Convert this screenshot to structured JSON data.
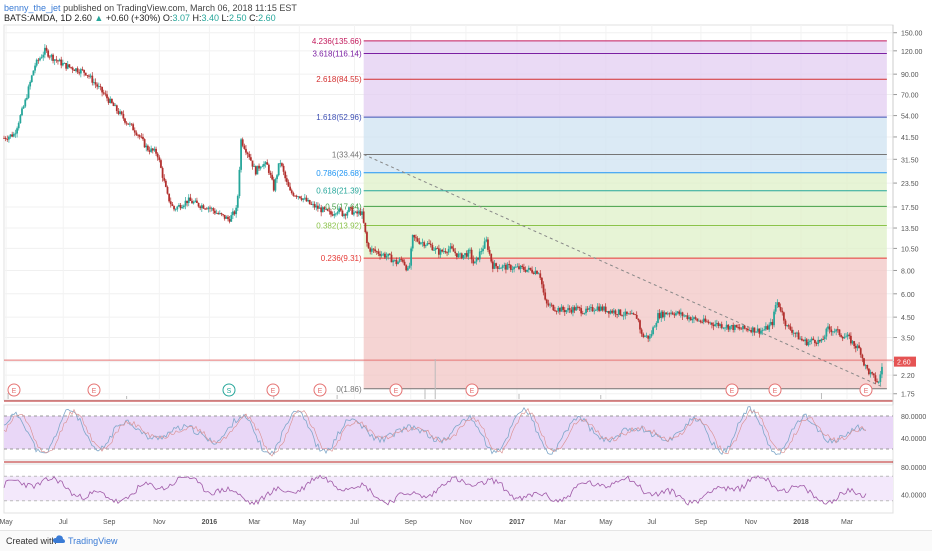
{
  "header": {
    "user": "benny_the_jet",
    "published": "published on TradingView.com, March 06, 2018 11:15 EST",
    "symbol": "BATS:AMDA, 1D",
    "price": "2.60",
    "change": "+0.60 (+30%)",
    "o_label": "O:",
    "o": "3.07",
    "h_label": "H:",
    "h": "3.40",
    "l_label": "L:",
    "l": "2.50",
    "c_label": "C:",
    "c": "2.60",
    "up_icon": "triangle-up"
  },
  "footer": {
    "created_with": "Created with",
    "brand": "TradingView",
    "logo_icon": "tradingview-cloud-logo"
  },
  "colors": {
    "up": "#26a69a",
    "down": "#b2302e",
    "fib_fill_red": "#f2c6c4",
    "fib_fill_green": "#dff0c8",
    "fib_fill_blue": "#cfe3f2",
    "fib_fill_purple": "#e3cdf2",
    "stoch_band": "#e9d7f7",
    "rsi_band": "#f3e8fb",
    "price_tag": "#e55353"
  },
  "chart_data": {
    "type": "candlestick",
    "symbol": "BATS:AMDA",
    "interval": "1D",
    "y_scale": "log",
    "y_ticks": [
      "150.00",
      "120.00",
      "90.00",
      "70.00",
      "54.00",
      "41.50",
      "31.50",
      "23.50",
      "17.50",
      "13.50",
      "10.50",
      "8.00",
      "6.00",
      "4.50",
      "3.50",
      "2.60",
      "2.20",
      "1.75"
    ],
    "x_ticks": [
      "May",
      "Jul",
      "Sep",
      "Nov",
      "2016",
      "Mar",
      "May",
      "Jul",
      "Sep",
      "Nov",
      "2017",
      "Mar",
      "May",
      "Jul",
      "Sep",
      "Nov",
      "2018",
      "Mar"
    ],
    "price_path": [
      [
        0,
        41
      ],
      [
        0.5,
        43
      ],
      [
        1,
        62
      ],
      [
        1.5,
        100
      ],
      [
        2,
        120
      ],
      [
        2.5,
        108
      ],
      [
        3,
        100
      ],
      [
        4,
        92
      ],
      [
        5,
        68
      ],
      [
        5.5,
        58
      ],
      [
        6,
        50
      ],
      [
        6.5,
        44
      ],
      [
        7,
        36
      ],
      [
        7.5,
        34
      ],
      [
        8,
        20
      ],
      [
        8.3,
        17
      ],
      [
        9,
        19
      ],
      [
        9.5,
        18
      ],
      [
        10,
        17.5
      ],
      [
        10.5,
        16
      ],
      [
        11,
        15
      ],
      [
        11.4,
        17
      ],
      [
        11.6,
        40
      ],
      [
        12,
        33
      ],
      [
        12.3,
        27
      ],
      [
        12.6,
        30
      ],
      [
        12.9,
        29
      ],
      [
        13.2,
        22
      ],
      [
        13.5,
        31
      ],
      [
        13.8,
        24
      ],
      [
        14,
        21
      ],
      [
        14.5,
        20
      ],
      [
        15,
        18
      ],
      [
        15.5,
        17
      ],
      [
        16,
        16
      ],
      [
        16.3,
        17
      ],
      [
        16.6,
        16
      ],
      [
        16.9,
        17
      ],
      [
        17.2,
        16
      ],
      [
        17.5,
        16.5
      ],
      [
        17.8,
        10.5
      ],
      [
        18.3,
        10
      ],
      [
        18.8,
        9.5
      ],
      [
        19.2,
        8.8
      ],
      [
        19.5,
        9.2
      ],
      [
        19.8,
        7.8
      ],
      [
        20,
        12
      ],
      [
        20.3,
        11.5
      ],
      [
        20.8,
        11
      ],
      [
        21.3,
        10
      ],
      [
        21.8,
        10.5
      ],
      [
        22.3,
        9.5
      ],
      [
        22.8,
        10
      ],
      [
        23,
        8.5
      ],
      [
        23.3,
        10
      ],
      [
        23.6,
        11.5
      ],
      [
        23.9,
        8.5
      ],
      [
        24.3,
        8.4
      ],
      [
        24.8,
        8.3
      ],
      [
        25.3,
        8.2
      ],
      [
        25.8,
        8
      ],
      [
        26.2,
        7.9
      ],
      [
        26.5,
        5.3
      ],
      [
        27,
        5
      ],
      [
        27.5,
        4.9
      ],
      [
        28,
        5
      ],
      [
        28.5,
        4.8
      ],
      [
        29,
        5.1
      ],
      [
        29.5,
        4.9
      ],
      [
        30,
        4.8
      ],
      [
        30.5,
        4.6
      ],
      [
        31,
        4.5
      ],
      [
        31.2,
        3.6
      ],
      [
        31.6,
        3.5
      ],
      [
        32,
        4.6
      ],
      [
        32.3,
        4.7
      ],
      [
        32.6,
        4.8
      ],
      [
        33,
        4.7
      ],
      [
        33.5,
        4.5
      ],
      [
        34,
        4.3
      ],
      [
        34.5,
        4.2
      ],
      [
        35,
        4.1
      ],
      [
        35.5,
        4.0
      ],
      [
        36,
        3.9
      ],
      [
        36.5,
        3.9
      ],
      [
        37,
        3.8
      ],
      [
        37.3,
        3.9
      ],
      [
        37.6,
        4.2
      ],
      [
        37.8,
        5.5
      ],
      [
        38,
        5.0
      ],
      [
        38.3,
        4.0
      ],
      [
        38.6,
        3.8
      ],
      [
        39,
        3.4
      ],
      [
        39.3,
        3.3
      ],
      [
        39.6,
        3.4
      ],
      [
        40,
        3.3
      ],
      [
        40.3,
        3.9
      ],
      [
        40.7,
        3.8
      ],
      [
        41,
        3.6
      ],
      [
        41.3,
        3.5
      ],
      [
        41.6,
        3.2
      ],
      [
        41.9,
        3.0
      ],
      [
        42.1,
        2.5
      ],
      [
        42.3,
        2.3
      ],
      [
        42.6,
        2.1
      ],
      [
        42.8,
        2.0
      ],
      [
        43,
        2.6
      ]
    ],
    "x_range": [
      0,
      43.5
    ],
    "y_range": [
      1.62,
      165
    ],
    "fibonacci": {
      "levels": [
        {
          "ratio": "4.236",
          "price": 135.66,
          "label": "4.236(135.66)",
          "color": "#c2185b"
        },
        {
          "ratio": "3.618",
          "price": 116.14,
          "label": "3.618(116.14)",
          "color": "#7b1fa2"
        },
        {
          "ratio": "2.618",
          "price": 84.55,
          "label": "2.618(84.55)",
          "color": "#d32f2f"
        },
        {
          "ratio": "1.618",
          "price": 52.96,
          "label": "1.618(52.96)",
          "color": "#3f51b5"
        },
        {
          "ratio": "1",
          "price": 33.44,
          "label": "1(33.44)",
          "color": "#757575"
        },
        {
          "ratio": "0.786",
          "price": 26.68,
          "label": "0.786(26.68)",
          "color": "#2196f3"
        },
        {
          "ratio": "0.618",
          "price": 21.39,
          "label": "0.618(21.39)",
          "color": "#26a69a"
        },
        {
          "ratio": "0.5",
          "price": 17.64,
          "label": "0.5(17.64)",
          "color": "#43a047"
        },
        {
          "ratio": "0.382",
          "price": 13.92,
          "label": "0.382(13.92)",
          "color": "#8bc34a"
        },
        {
          "ratio": "0.236",
          "price": 9.31,
          "label": "0.236(9.31)",
          "color": "#e53935"
        },
        {
          "ratio": "0",
          "price": 1.86,
          "label": "0(1.86)",
          "color": "#757575"
        }
      ],
      "x_start": 17.6,
      "x_end": 43.2
    },
    "trendline": {
      "from": [
        17.6,
        33.44
      ],
      "to": [
        43.0,
        1.9
      ]
    },
    "horizontal_line_price": 2.65,
    "last_price": "2.60",
    "events": [
      {
        "x": 0.6,
        "label": "E"
      },
      {
        "x": 5.4,
        "label": "E"
      },
      {
        "x": 13.1,
        "label": "S"
      },
      {
        "x": 15.8,
        "label": "E"
      },
      {
        "x": 18.6,
        "label": "E"
      },
      {
        "x": 23.2,
        "label": "E"
      },
      {
        "x": 27.3,
        "label": "E"
      },
      {
        "x": 42.5,
        "label": "E"
      },
      {
        "x": 45.0,
        "label": "E"
      },
      {
        "x": 50.1,
        "label": "E"
      }
    ],
    "stochastic": {
      "label_upper": "80.0000",
      "label_lower": "40.0000",
      "upper": 80,
      "lower": 20,
      "band": [
        20,
        80
      ]
    },
    "rsi": {
      "label_upper": "80.0000",
      "label_lower": "40.0000",
      "band": [
        30,
        70
      ]
    }
  }
}
